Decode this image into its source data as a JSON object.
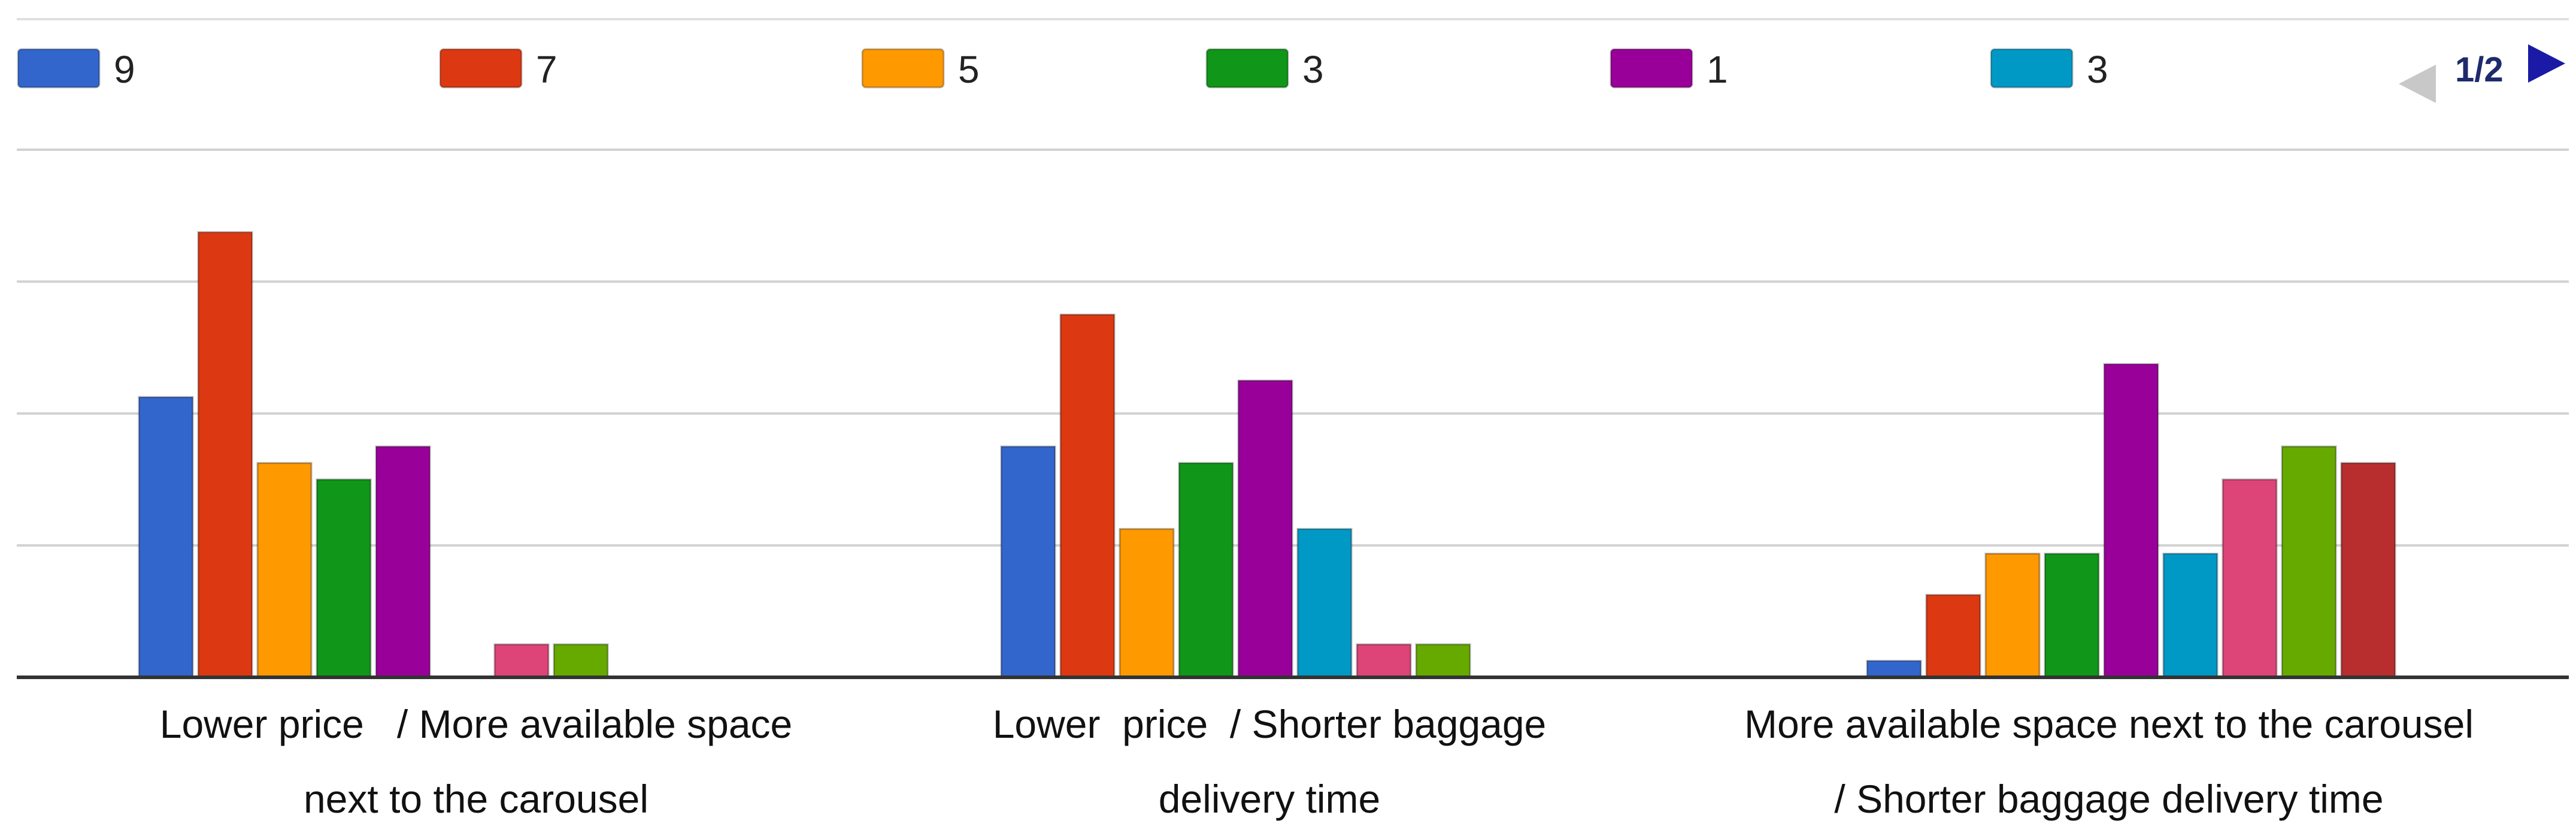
{
  "legend": {
    "items": [
      {
        "label": "9",
        "color": "#3366cc"
      },
      {
        "label": "7",
        "color": "#dc3912"
      },
      {
        "label": "5",
        "color": "#ff9900"
      },
      {
        "label": "3",
        "color": "#109618"
      },
      {
        "label": "1",
        "color": "#990099"
      },
      {
        "label": "3",
        "color": "#0099c6"
      }
    ],
    "page_indicator": "1/2",
    "prev_icon": "triangle-left-icon",
    "next_icon": "triangle-right-icon",
    "prev_color": "#c8c8c8",
    "next_color": "#1a1aa6"
  },
  "chart_data": {
    "type": "bar",
    "categories": [
      [
        "Lower price   / More available space",
        "next to the carousel"
      ],
      [
        "Lower  price  / Shorter baggage",
        "delivery time"
      ],
      [
        "More available space next to the carousel",
        "/ Shorter baggage delivery time"
      ]
    ],
    "series": [
      {
        "color": "#3366cc",
        "values": [
          17,
          14,
          1
        ]
      },
      {
        "color": "#dc3912",
        "values": [
          27,
          22,
          5
        ]
      },
      {
        "color": "#ff9900",
        "values": [
          13,
          9,
          7.5
        ]
      },
      {
        "color": "#109618",
        "values": [
          12,
          13,
          7.5
        ]
      },
      {
        "color": "#990099",
        "values": [
          14,
          18,
          19
        ]
      },
      {
        "color": "#0099c6",
        "values": [
          0,
          9,
          7.5
        ]
      },
      {
        "color": "#dd4477",
        "values": [
          2,
          2,
          12
        ]
      },
      {
        "color": "#66aa00",
        "values": [
          2,
          2,
          14
        ]
      },
      {
        "color": "#b82e2e",
        "values": [
          0,
          0,
          13
        ]
      }
    ],
    "ylim": [
      0,
      32
    ],
    "grid": true,
    "legend_position": "top"
  }
}
